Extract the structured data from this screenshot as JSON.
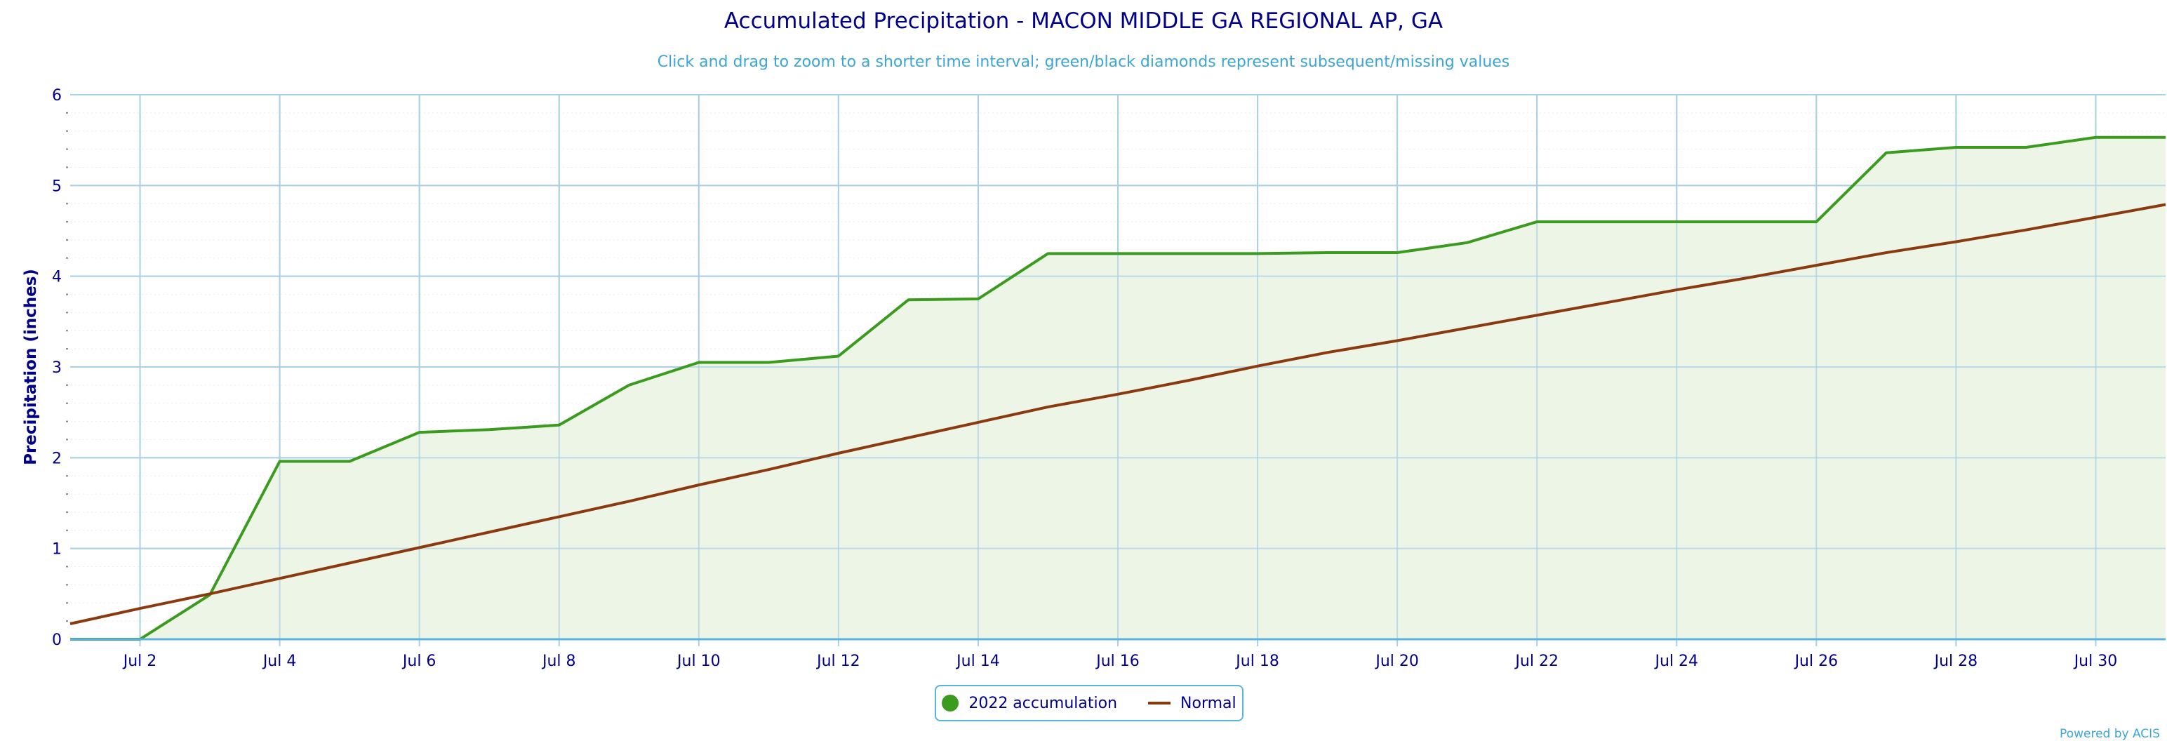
{
  "chart_data": {
    "type": "area",
    "title": "Accumulated Precipitation - MACON MIDDLE GA REGIONAL AP, GA",
    "subtitle": "Click and drag to zoom to a shorter time interval; green/black diamonds represent subsequent/missing values",
    "ylabel": "Precipitation (inches)",
    "xlabel": "",
    "x": [
      "Jul 1",
      "Jul 2",
      "Jul 3",
      "Jul 4",
      "Jul 5",
      "Jul 6",
      "Jul 7",
      "Jul 8",
      "Jul 9",
      "Jul 10",
      "Jul 11",
      "Jul 12",
      "Jul 13",
      "Jul 14",
      "Jul 15",
      "Jul 16",
      "Jul 17",
      "Jul 18",
      "Jul 19",
      "Jul 20",
      "Jul 21",
      "Jul 22",
      "Jul 23",
      "Jul 24",
      "Jul 25",
      "Jul 26",
      "Jul 27",
      "Jul 28",
      "Jul 29",
      "Jul 30",
      "Jul 31"
    ],
    "x_tick_labels": [
      "Jul 2",
      "Jul 4",
      "Jul 6",
      "Jul 8",
      "Jul 10",
      "Jul 12",
      "Jul 14",
      "Jul 16",
      "Jul 18",
      "Jul 20",
      "Jul 22",
      "Jul 24",
      "Jul 26",
      "Jul 28",
      "Jul 30"
    ],
    "y_ticks": [
      0,
      1,
      2,
      3,
      4,
      5,
      6
    ],
    "ylim": [
      0,
      6
    ],
    "grid": true,
    "legend_position": "bottom-center",
    "series": [
      {
        "name": "2022 accumulation",
        "type": "area",
        "color": "#3a9b1e",
        "fill": "#edf5e6",
        "values": [
          0,
          0,
          0.49,
          1.96,
          1.96,
          2.28,
          2.31,
          2.36,
          2.8,
          3.05,
          3.05,
          3.12,
          3.74,
          3.75,
          4.25,
          4.25,
          4.25,
          4.25,
          4.26,
          4.26,
          4.37,
          4.6,
          4.6,
          4.6,
          4.6,
          4.6,
          5.36,
          5.42,
          5.42,
          5.53,
          5.53
        ]
      },
      {
        "name": "Normal",
        "type": "line",
        "color": "#8b3a0f",
        "values": [
          0.17,
          0.34,
          0.5,
          0.67,
          0.84,
          1.01,
          1.18,
          1.35,
          1.52,
          1.7,
          1.87,
          2.05,
          2.22,
          2.39,
          2.56,
          2.7,
          2.85,
          3.01,
          3.16,
          3.29,
          3.43,
          3.57,
          3.71,
          3.85,
          3.98,
          4.12,
          4.26,
          4.38,
          4.51,
          4.65,
          4.79
        ]
      }
    ]
  },
  "credits": "Powered by ACIS"
}
